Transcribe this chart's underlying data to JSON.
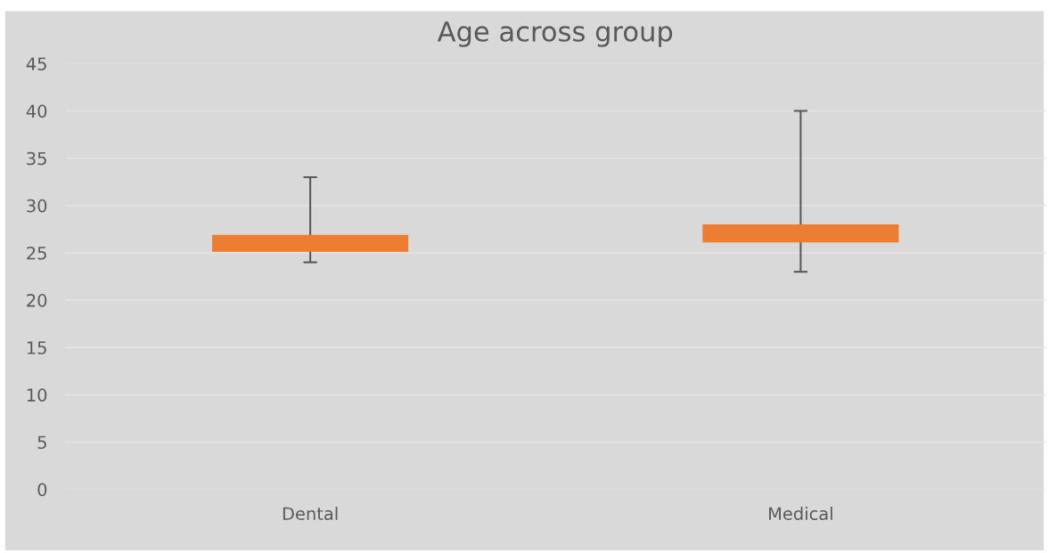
{
  "chart_data": {
    "type": "bar",
    "title": "Age across group",
    "categories": [
      "Dental",
      "Medical"
    ],
    "base": [
      25.1,
      26.1
    ],
    "values": [
      1.8,
      1.9
    ],
    "errors": [
      [
        24,
        33
      ],
      [
        23,
        40
      ]
    ],
    "color": "#ed7d31",
    "ylim": [
      0,
      45
    ],
    "yticks": [
      0,
      5,
      10,
      15,
      20,
      25,
      30,
      35,
      40,
      45
    ],
    "grid": "y",
    "legend": false
  }
}
